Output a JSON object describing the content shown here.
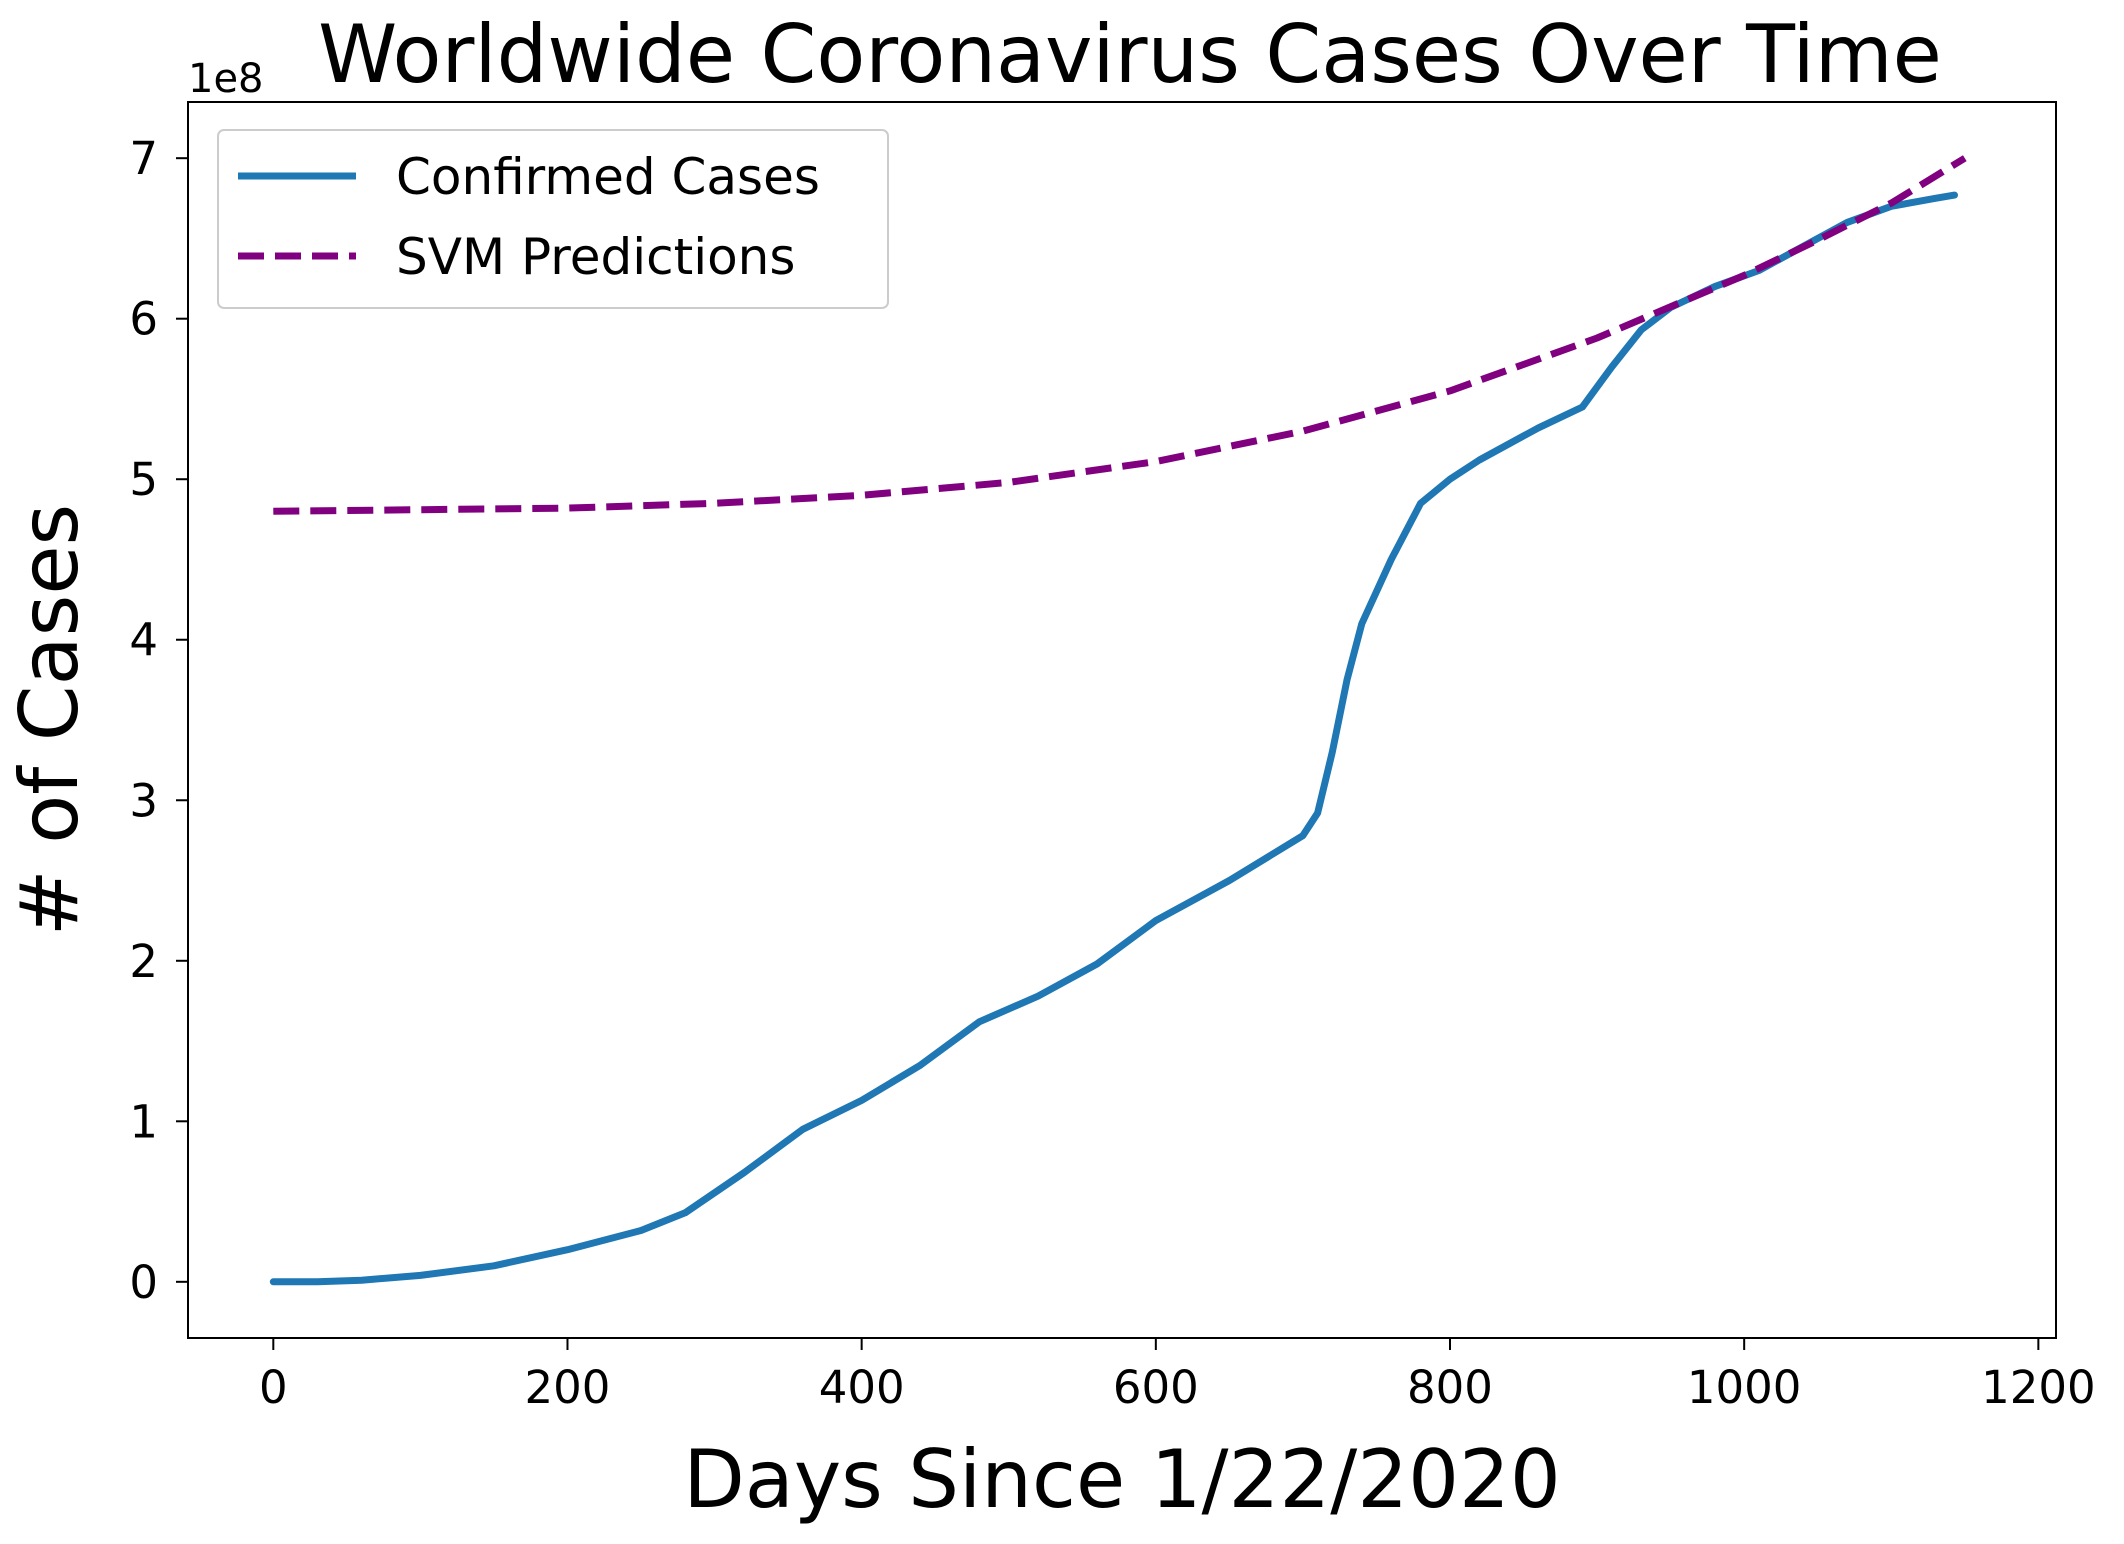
{
  "chart_data": {
    "type": "line",
    "title": "Worldwide Coronavirus Cases Over Time",
    "xlabel": "Days Since 1/22/2020",
    "ylabel": "# of Cases",
    "y_offset_label": "1e8",
    "xlim": [
      -58,
      1212
    ],
    "ylim": [
      -0.35,
      7.35
    ],
    "x_ticks": [
      0,
      200,
      400,
      600,
      800,
      1000,
      1200
    ],
    "x_tick_labels": [
      "0",
      "200",
      "400",
      "600",
      "800",
      "1000",
      "1200"
    ],
    "y_ticks": [
      0,
      1,
      2,
      3,
      4,
      5,
      6,
      7
    ],
    "y_tick_labels": [
      "0",
      "1",
      "2",
      "3",
      "4",
      "5",
      "6",
      "7"
    ],
    "y_scale_multiplier": 100000000,
    "grid": false,
    "legend_position": "top-left",
    "series": [
      {
        "name": "Confirmed Cases",
        "color": "#1f77b4",
        "style": "solid",
        "x": [
          0,
          30,
          60,
          100,
          150,
          200,
          250,
          280,
          320,
          360,
          400,
          440,
          480,
          520,
          560,
          600,
          650,
          700,
          710,
          720,
          730,
          740,
          760,
          780,
          800,
          820,
          860,
          890,
          910,
          930,
          950,
          980,
          1010,
          1040,
          1070,
          1100,
          1130,
          1143
        ],
        "y": [
          0.0,
          0.0,
          0.01,
          0.04,
          0.1,
          0.2,
          0.32,
          0.43,
          0.68,
          0.95,
          1.13,
          1.35,
          1.62,
          1.78,
          1.98,
          2.25,
          2.5,
          2.78,
          2.92,
          3.3,
          3.75,
          4.1,
          4.5,
          4.85,
          5.0,
          5.12,
          5.32,
          5.45,
          5.7,
          5.93,
          6.07,
          6.2,
          6.3,
          6.45,
          6.6,
          6.7,
          6.75,
          6.77
        ]
      },
      {
        "name": "SVM Predictions",
        "color": "#800080",
        "style": "dashed",
        "x": [
          0,
          100,
          200,
          300,
          400,
          500,
          600,
          700,
          800,
          900,
          1000,
          1050,
          1100,
          1150
        ],
        "y": [
          4.8,
          4.81,
          4.82,
          4.85,
          4.9,
          4.98,
          5.11,
          5.3,
          5.55,
          5.88,
          6.27,
          6.49,
          6.72,
          7.0
        ]
      }
    ]
  }
}
